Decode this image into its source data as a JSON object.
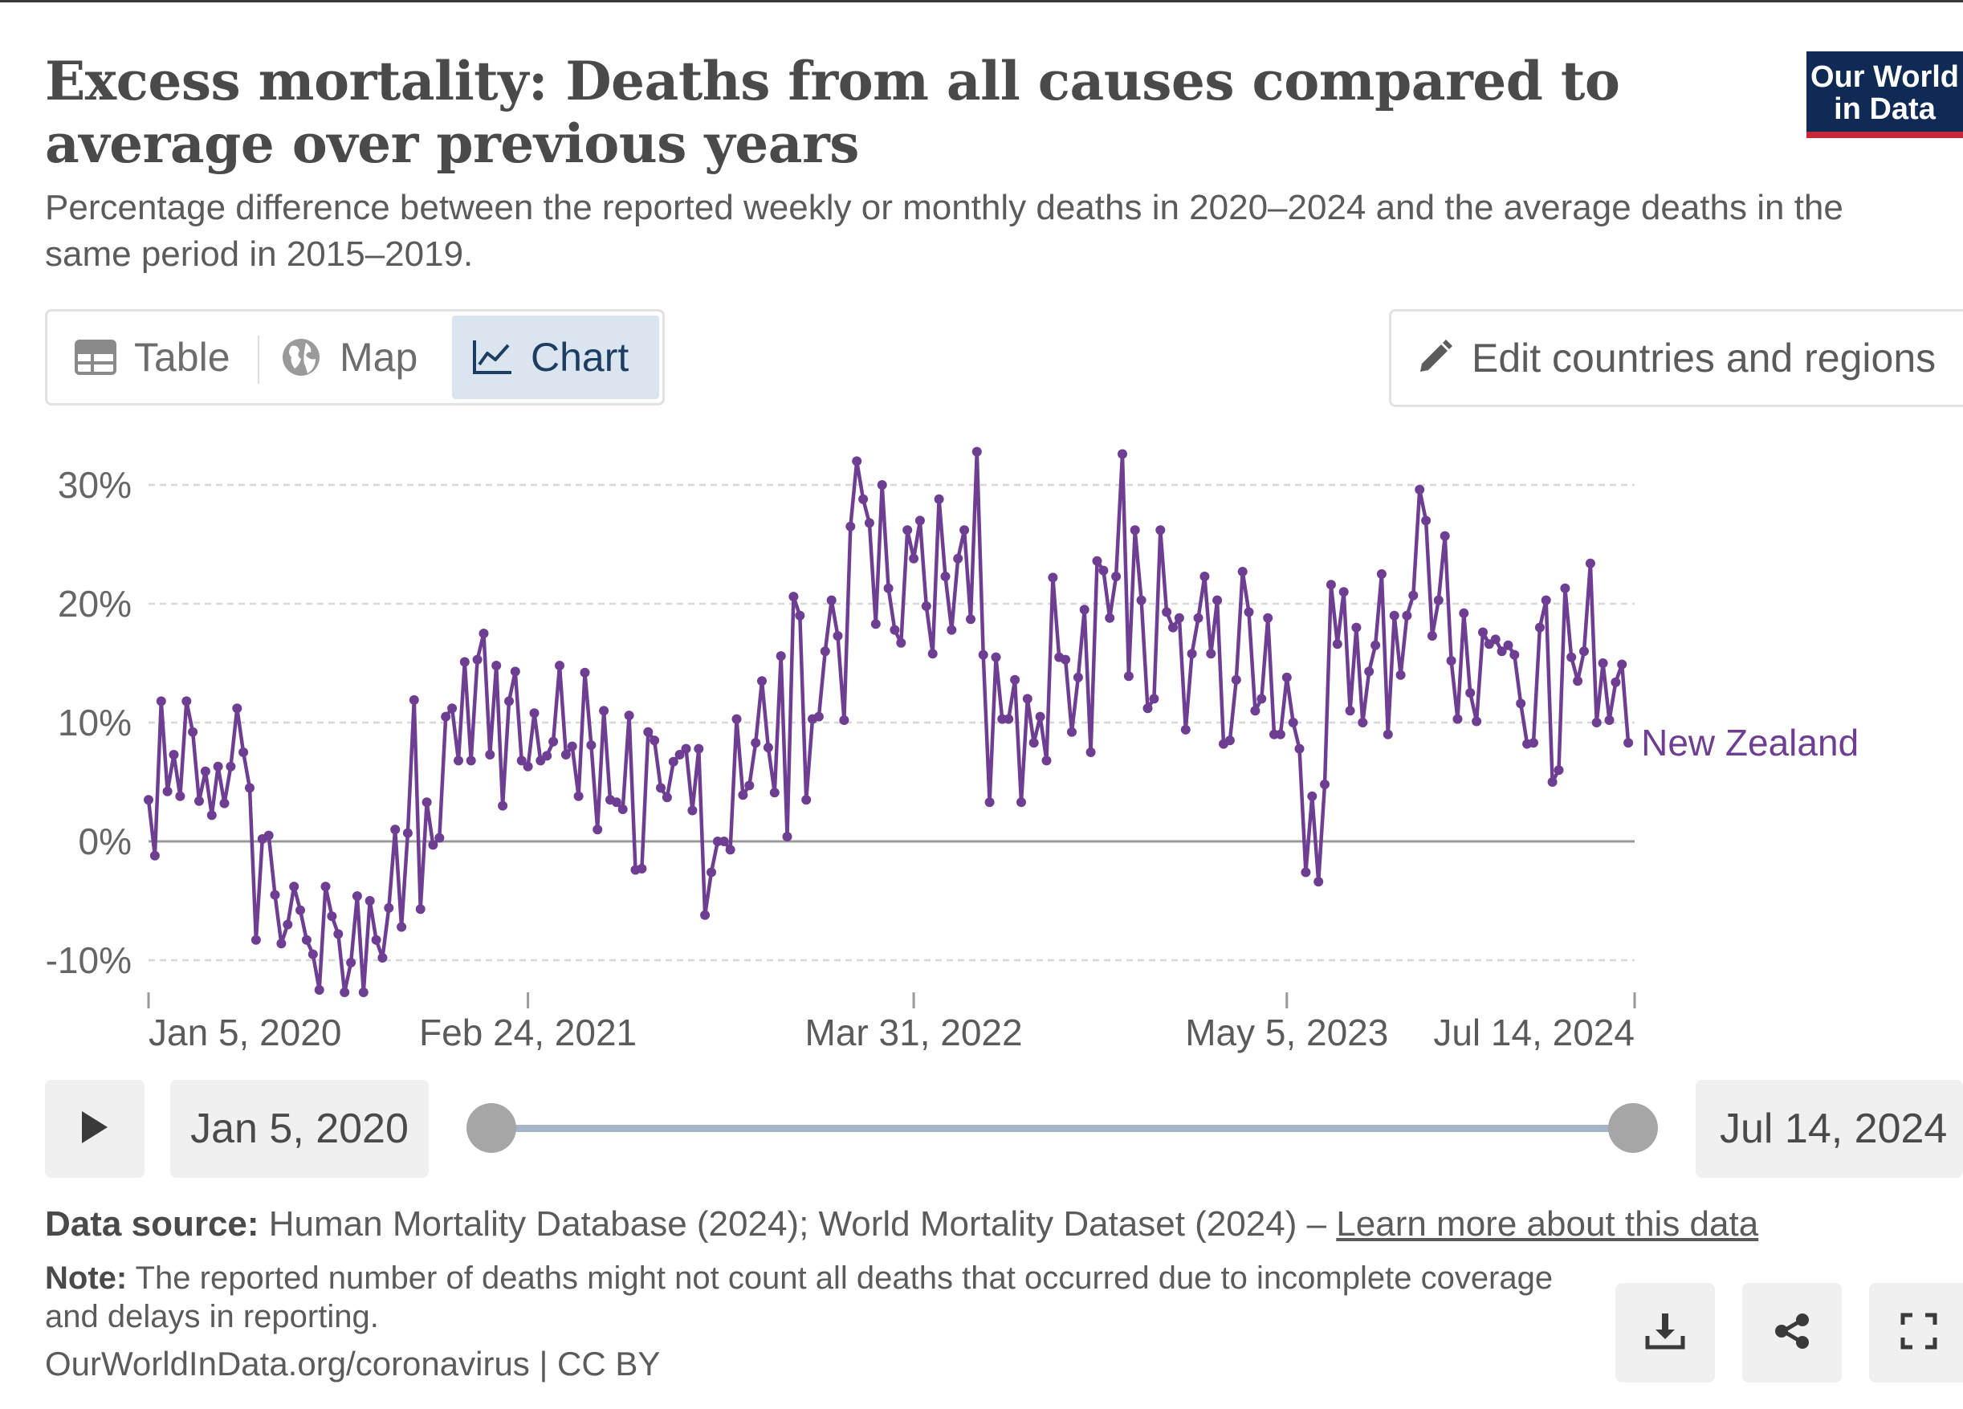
{
  "header": {
    "title": "Excess mortality: Deaths from all causes compared to average over previous years",
    "subtitle": "Percentage difference between the reported weekly or monthly deaths in 2020–2024 and the average deaths in the same period in 2015–2019.",
    "logo_line1": "Our World",
    "logo_line2": "in Data"
  },
  "tabs": {
    "table": "Table",
    "map": "Map",
    "chart": "Chart"
  },
  "edit_button": "Edit countries and regions",
  "timeline": {
    "start": "Jan 5, 2020",
    "end": "Jul 14, 2024"
  },
  "footer": {
    "source_label": "Data source:",
    "source_text": " Human Mortality Database (2024); World Mortality Dataset (2024) – ",
    "source_link": "Learn more about this data",
    "note_label": "Note:",
    "note_text": " The reported number of deaths might not count all deaths that occurred due to incomplete coverage and delays in reporting.",
    "url": "OurWorldInData.org/coronavirus | CC BY"
  },
  "colors": {
    "series": "#6d3e91",
    "accent": "#0f2b55",
    "brand_red": "#c8283c"
  },
  "icons": [
    "table-icon",
    "globe-icon",
    "chart-line-icon",
    "pencil-icon",
    "play-icon",
    "download-icon",
    "share-icon",
    "fullscreen-icon"
  ],
  "chart_data": {
    "type": "line",
    "title": "Excess mortality: Deaths from all causes compared to average over previous years",
    "ylabel": "",
    "xlabel": "",
    "ylim": [
      -13,
      31
    ],
    "y_ticks": [
      -10,
      0,
      10,
      20,
      30
    ],
    "y_tick_labels": [
      "-10%",
      "0%",
      "10%",
      "20%",
      "30%"
    ],
    "x_range": [
      0,
      235
    ],
    "x_ticks": [
      0,
      60,
      121,
      180,
      235
    ],
    "x_tick_labels": [
      "Jan 5, 2020",
      "Feb 24, 2021",
      "Mar 31, 2022",
      "May 5, 2023",
      "Jul 14, 2024"
    ],
    "x_unit": "weeks since Jan 5, 2020",
    "series": [
      {
        "name": "New Zealand",
        "values": [
          3.5,
          -1.2,
          11.8,
          4.2,
          7.3,
          3.8,
          11.8,
          9.2,
          3.4,
          5.9,
          2.2,
          6.3,
          3.2,
          6.3,
          11.2,
          7.5,
          4.5,
          -8.3,
          0.2,
          0.5,
          -4.5,
          -8.6,
          -7.0,
          -3.8,
          -5.8,
          -8.3,
          -9.5,
          -12.5,
          -3.8,
          -6.3,
          -7.8,
          -12.7,
          -10.2,
          -4.6,
          -12.7,
          -5.0,
          -8.3,
          -9.8,
          -5.6,
          1.0,
          -7.2,
          0.7,
          11.9,
          -5.7,
          3.3,
          -0.3,
          0.3,
          10.5,
          11.2,
          6.8,
          15.1,
          6.8,
          15.3,
          17.5,
          7.3,
          14.8,
          3.0,
          11.8,
          14.3,
          6.8,
          6.3,
          10.8,
          6.8,
          7.2,
          8.4,
          14.8,
          7.3,
          8.0,
          3.8,
          14.2,
          8.1,
          1.0,
          11.0,
          3.5,
          3.3,
          2.7,
          10.6,
          -2.4,
          -2.3,
          9.2,
          8.5,
          4.5,
          3.7,
          6.7,
          7.3,
          7.8,
          2.6,
          7.8,
          -6.2,
          -2.6,
          0.0,
          0.0,
          -0.7,
          10.3,
          3.9,
          4.7,
          8.3,
          13.5,
          7.9,
          4.1,
          15.6,
          0.4,
          20.6,
          19.0,
          3.5,
          10.3,
          10.5,
          16.0,
          20.3,
          17.3,
          10.2,
          26.5,
          32.0,
          28.8,
          26.8,
          18.3,
          30.0,
          21.3,
          17.8,
          16.7,
          26.2,
          23.8,
          27.0,
          19.8,
          15.8,
          28.8,
          22.3,
          17.8,
          23.8,
          26.2,
          18.7,
          32.8,
          15.7,
          3.3,
          15.5,
          10.3,
          10.3,
          13.6,
          3.3,
          12.0,
          8.3,
          10.5,
          6.8,
          22.2,
          15.5,
          15.3,
          9.2,
          13.8,
          19.5,
          7.5,
          23.6,
          22.8,
          18.8,
          22.3,
          32.6,
          13.9,
          26.2,
          20.3,
          11.2,
          12.0,
          26.2,
          19.3,
          18.0,
          18.8,
          9.4,
          15.8,
          18.8,
          22.3,
          15.8,
          20.3,
          8.2,
          8.5,
          13.6,
          22.7,
          19.3,
          11.0,
          12.0,
          18.8,
          9.0,
          9.0,
          13.8,
          10.0,
          7.8,
          -2.6,
          3.8,
          -3.4,
          4.8,
          21.6,
          16.6,
          21.0,
          11.0,
          18.0,
          10.0,
          14.3,
          16.5,
          22.5,
          9.0,
          19.0,
          14.0,
          19.0,
          20.7,
          29.6,
          27.0,
          17.3,
          20.3,
          25.7,
          15.2,
          10.3,
          19.2,
          12.5,
          10.1,
          17.6,
          16.6,
          17.0,
          16.0,
          16.5,
          15.7,
          11.6,
          8.2,
          8.3,
          18.0,
          20.3,
          5.0,
          6.0,
          21.3,
          15.5,
          13.5,
          16.0,
          23.4,
          10.0,
          15.0,
          10.2,
          13.4,
          14.9,
          8.3
        ]
      }
    ]
  }
}
